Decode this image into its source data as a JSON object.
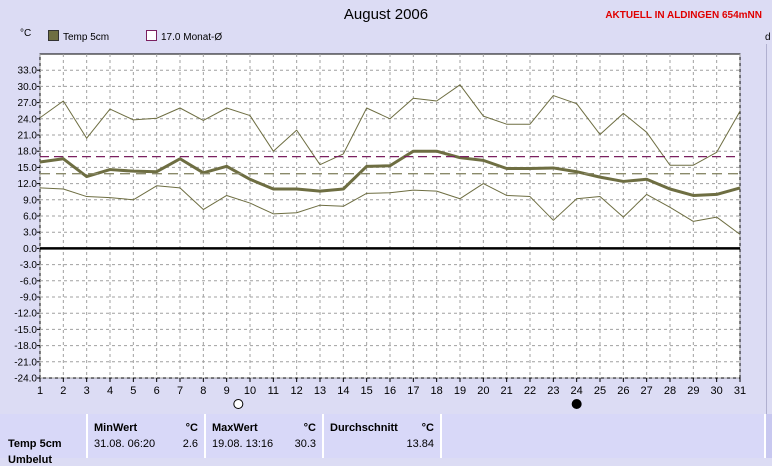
{
  "header": {
    "title": "August 2006",
    "station": "AKTUELL IN ALDINGEN 654mNN"
  },
  "units": {
    "left": "°C",
    "right": "d"
  },
  "legend": [
    {
      "label": "Temp 5cm",
      "color": "#6e6e42",
      "filled": true
    },
    {
      "label": "17.0 Monat-Ø",
      "color": "#7a2060",
      "filled": false
    }
  ],
  "moon_icons": [
    {
      "name": "full-moon-icon",
      "day": 9.5
    },
    {
      "name": "new-moon-icon",
      "day": 24
    }
  ],
  "chart_data": {
    "type": "line",
    "title": "August 2006",
    "ylabel": "°C",
    "ylim": [
      -24,
      36
    ],
    "yticks": [
      33,
      30,
      27,
      24,
      21,
      18,
      15,
      12,
      9,
      6,
      3,
      0,
      -3,
      -6,
      -9,
      -12,
      -15,
      -18,
      -21,
      -24
    ],
    "ytick_labels": [
      "33.0",
      "30.0",
      "27.0",
      "24.0",
      "21.0",
      "18.0",
      "15.0",
      "12.0",
      "9.0",
      "6.0",
      "3.0",
      "0.0",
      "-3.0",
      "-6.0",
      "-9.0",
      "-12.0",
      "-15.0",
      "-18.0",
      "-21.0",
      "-24.0"
    ],
    "x": [
      1,
      2,
      3,
      4,
      5,
      6,
      7,
      8,
      9,
      10,
      11,
      12,
      13,
      14,
      15,
      16,
      17,
      18,
      19,
      20,
      21,
      22,
      23,
      24,
      25,
      26,
      27,
      28,
      29,
      30,
      31
    ],
    "x_labels": [
      "1",
      "2",
      "3",
      "4",
      "5",
      "6",
      "7",
      "8",
      "9",
      "10",
      "11",
      "12",
      "13",
      "14",
      "15",
      "16",
      "17",
      "18",
      "19",
      "20",
      "21",
      "22",
      "23",
      "24",
      "25",
      "26",
      "27",
      "28",
      "29",
      "30",
      "31"
    ],
    "series": [
      {
        "name": "Temp 5cm",
        "role": "mean",
        "color": "#6e6e42",
        "values": [
          16.0,
          16.6,
          13.3,
          14.6,
          14.3,
          14.2,
          16.6,
          14.0,
          15.2,
          12.8,
          11.0,
          11.0,
          10.6,
          11.0,
          15.2,
          15.3,
          18.0,
          18.0,
          16.8,
          16.3,
          14.8,
          14.8,
          14.9,
          14.2,
          13.2,
          12.4,
          12.8,
          11.0,
          9.8,
          10.0,
          11.2
        ]
      },
      {
        "role": "max",
        "color": "#6e6e42",
        "values": [
          24.2,
          27.3,
          20.4,
          25.8,
          23.8,
          24.1,
          26.0,
          23.7,
          26.0,
          24.6,
          18.0,
          21.9,
          15.5,
          17.5,
          26.0,
          24.0,
          27.8,
          27.3,
          30.3,
          24.5,
          23.0,
          23.0,
          28.3,
          26.8,
          21.1,
          25.0,
          21.5,
          15.4,
          15.4,
          17.8,
          25.4
        ]
      },
      {
        "role": "min",
        "color": "#6e6e42",
        "values": [
          11.2,
          11.0,
          9.6,
          9.4,
          9.0,
          11.6,
          11.2,
          7.2,
          9.8,
          8.4,
          6.4,
          6.6,
          8.0,
          7.8,
          10.2,
          10.3,
          10.8,
          10.6,
          9.2,
          12.0,
          9.8,
          9.6,
          5.2,
          9.2,
          9.6,
          5.8,
          10.0,
          7.6,
          5.0,
          5.8,
          2.6
        ]
      },
      {
        "name": "17.0 Monat-Ø",
        "role": "month-average",
        "color": "#7a2060",
        "dashed": true,
        "values": [
          17.0,
          17.0,
          17.0,
          17.0,
          17.0,
          17.0,
          17.0,
          17.0,
          17.0,
          17.0,
          17.0,
          17.0,
          17.0,
          17.0,
          17.0,
          17.0,
          17.0,
          17.0,
          17.0,
          17.0,
          17.0,
          17.0,
          17.0,
          17.0,
          17.0,
          17.0,
          17.0,
          17.0,
          17.0,
          17.0,
          17.0
        ]
      },
      {
        "role": "period-average",
        "color": "#8a8a6a",
        "dashed": true,
        "values": [
          13.84,
          13.84,
          13.84,
          13.84,
          13.84,
          13.84,
          13.84,
          13.84,
          13.84,
          13.84,
          13.84,
          13.84,
          13.84,
          13.84,
          13.84,
          13.84,
          13.84,
          13.84,
          13.84,
          13.84,
          13.84,
          13.84,
          13.84,
          13.84,
          13.84,
          13.84,
          13.84,
          13.84,
          13.84,
          13.84,
          13.84
        ]
      }
    ],
    "zero_line": 0,
    "grid": true
  },
  "stats": {
    "row_label": "Temp 5cm",
    "row_label_2": "Umbelut",
    "min": {
      "header": "MinWert",
      "unit": "°C",
      "time": "31.08.  06:20",
      "value": "2.6"
    },
    "max": {
      "header": "MaxWert",
      "unit": "°C",
      "time": "19.08.  13:16",
      "value": "30.3"
    },
    "avg": {
      "header": "Durchschnitt",
      "unit": "°C",
      "value": "13.84"
    }
  }
}
